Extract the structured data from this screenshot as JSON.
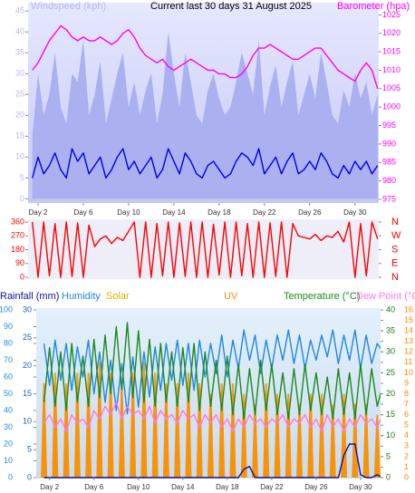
{
  "chart_data": [
    {
      "type": "line",
      "title": "Current last 30 days 31 August 2025",
      "ylabel": "Windspeed (kph)",
      "y2label": "Barometer (hpa)",
      "x": [
        1.5,
        2,
        2.5,
        3,
        3.5,
        4,
        4.5,
        5,
        5.5,
        6,
        6.5,
        7,
        7.5,
        8,
        8.5,
        9,
        9.5,
        10,
        10.5,
        11,
        11.5,
        12,
        12.5,
        13,
        13.5,
        14,
        14.5,
        15,
        15.5,
        16,
        16.5,
        17,
        17.5,
        18,
        18.5,
        19,
        19.5,
        20,
        20.5,
        21,
        21.5,
        22,
        22.5,
        23,
        23.5,
        24,
        24.5,
        25,
        25.5,
        26,
        26.5,
        27,
        27.5,
        28,
        28.5,
        29,
        29.5,
        30,
        30.5,
        31,
        31.5,
        32
      ],
      "xlim": [
        1.12,
        32.1
      ],
      "xticks": [
        {
          "value": 2,
          "label": "Day 2"
        },
        {
          "value": 6,
          "label": "Day 6"
        },
        {
          "value": 10,
          "label": "Day 10"
        },
        {
          "value": 14,
          "label": "Day 14"
        },
        {
          "value": 18,
          "label": "Day 18"
        },
        {
          "value": 22,
          "label": "Day 22"
        },
        {
          "value": 26,
          "label": "Day 26"
        },
        {
          "value": 30,
          "label": "Day 30"
        }
      ],
      "ylim": [
        -1,
        47
      ],
      "yticks": [
        0,
        5,
        10,
        15,
        20,
        25,
        30,
        35,
        40,
        45
      ],
      "y2lim": [
        974,
        1028.3
      ],
      "y2ticks": [
        975,
        980,
        985,
        990,
        995,
        1000,
        1005,
        1010,
        1015,
        1020,
        1025
      ],
      "grid": false,
      "series": [
        {
          "type": "area",
          "color": "#aab0f0",
          "values": [
            15,
            30,
            20,
            25,
            35,
            22,
            18,
            30,
            28,
            38,
            20,
            25,
            33,
            18,
            24,
            30,
            35,
            22,
            28,
            20,
            26,
            30,
            18,
            25,
            40,
            30,
            22,
            35,
            28,
            20,
            18,
            26,
            30,
            24,
            20,
            22,
            28,
            35,
            30,
            25,
            38,
            20,
            27,
            32,
            22,
            28,
            33,
            20,
            25,
            30,
            24,
            35,
            28,
            20,
            18,
            26,
            22,
            30,
            24,
            28,
            20,
            25
          ]
        },
        {
          "type": "line",
          "color": "#0000ee",
          "values": [
            5,
            10,
            6,
            8,
            11,
            7,
            5,
            12,
            9,
            11,
            6,
            8,
            10,
            5,
            7,
            10,
            12,
            7,
            9,
            6,
            8,
            10,
            5,
            7,
            12,
            9,
            6,
            11,
            9,
            6,
            5,
            8,
            9,
            7,
            5,
            6,
            9,
            11,
            10,
            8,
            12,
            6,
            8,
            10,
            6,
            9,
            11,
            6,
            7,
            9,
            7,
            11,
            9,
            6,
            5,
            8,
            6,
            9,
            7,
            9,
            6,
            8
          ]
        },
        {
          "type": "line",
          "axis": "y2",
          "color": "#ff00ff",
          "values": [
            1010,
            1012,
            1015,
            1018,
            1020,
            1022,
            1021,
            1019,
            1018,
            1019,
            1018,
            1018,
            1019,
            1018,
            1017,
            1018,
            1020,
            1021,
            1019,
            1016,
            1014,
            1013,
            1012,
            1013,
            1011,
            1010,
            1011,
            1012,
            1013,
            1012,
            1011,
            1010,
            1010,
            1009,
            1009,
            1008,
            1008,
            1009,
            1011,
            1014,
            1016,
            1016,
            1017,
            1016,
            1015,
            1014,
            1013,
            1013,
            1014,
            1015,
            1016,
            1016,
            1014,
            1012,
            1010,
            1009,
            1008,
            1007,
            1010,
            1012,
            1010,
            1005
          ]
        }
      ]
    },
    {
      "type": "line",
      "x": [
        1.5,
        2,
        2.5,
        3,
        3.5,
        4,
        4.5,
        5,
        5.5,
        6,
        6.5,
        7,
        7.5,
        8,
        8.5,
        9,
        9.5,
        10,
        10.5,
        11,
        11.5,
        12,
        12.5,
        13,
        13.5,
        14,
        14.5,
        15,
        15.5,
        16,
        16.5,
        17,
        17.5,
        18,
        18.5,
        19,
        19.5,
        20,
        20.5,
        21,
        21.5,
        22,
        22.5,
        23,
        23.5,
        24,
        24.5,
        25,
        25.5,
        26,
        26.5,
        27,
        27.5,
        28,
        28.5,
        29,
        29.5,
        30,
        30.5,
        31,
        31.5,
        32
      ],
      "xlim": [
        1.12,
        32.1
      ],
      "ylim": [
        -12,
        378
      ],
      "yticks": [
        0,
        90,
        180,
        270,
        360
      ],
      "y2lim": [
        -12,
        378
      ],
      "y2ticks": [
        {
          "value": 360,
          "label": "N"
        },
        {
          "value": 270,
          "label": "W"
        },
        {
          "value": 180,
          "label": "S"
        },
        {
          "value": 90,
          "label": "E"
        },
        {
          "value": 0,
          "label": "N"
        }
      ],
      "grid": false,
      "series": [
        {
          "type": "line",
          "color": "#ff0000",
          "values": [
            360,
            0,
            360,
            10,
            350,
            0,
            360,
            5,
            355,
            0,
            340,
            200,
            250,
            270,
            220,
            260,
            240,
            300,
            360,
            0,
            360,
            0,
            350,
            10,
            360,
            0,
            355,
            5,
            360,
            0,
            360,
            0,
            345,
            15,
            360,
            0,
            360,
            10,
            350,
            0,
            360,
            0,
            355,
            5,
            360,
            0,
            350,
            270,
            260,
            250,
            280,
            240,
            270,
            260,
            300,
            230,
            360,
            0,
            350,
            10,
            360,
            250
          ]
        }
      ]
    },
    {
      "type": "line",
      "x": [
        1.5,
        2,
        2.5,
        3,
        3.5,
        4,
        4.5,
        5,
        5.5,
        6,
        6.5,
        7,
        7.5,
        8,
        8.5,
        9,
        9.5,
        10,
        10.5,
        11,
        11.5,
        12,
        12.5,
        13,
        13.5,
        14,
        14.5,
        15,
        15.5,
        16,
        16.5,
        17,
        17.5,
        18,
        18.5,
        19,
        19.5,
        20,
        20.5,
        21,
        21.5,
        22,
        22.5,
        23,
        23.5,
        24,
        24.5,
        25,
        25.5,
        26,
        26.5,
        27,
        27.5,
        28,
        28.5,
        29,
        29.5,
        30,
        30.5,
        31,
        31.5,
        32
      ],
      "xlim": [
        0.8,
        31.8
      ],
      "xticks": [
        {
          "value": 2,
          "label": "Day 2"
        },
        {
          "value": 6,
          "label": "Day 6"
        },
        {
          "value": 10,
          "label": "Day 10"
        },
        {
          "value": 14,
          "label": "Day 14"
        },
        {
          "value": 18,
          "label": "Day 18"
        },
        {
          "value": 22,
          "label": "Day 22"
        },
        {
          "value": 26,
          "label": "Day 26"
        },
        {
          "value": 30,
          "label": "Day 30"
        }
      ],
      "ylim": [
        0,
        100
      ],
      "yticks": [
        0,
        10,
        20,
        30,
        40,
        50,
        60,
        70,
        80,
        90,
        100
      ],
      "y2lim": [
        0,
        30
      ],
      "y2ticks": [
        0,
        5,
        10,
        15,
        20,
        25,
        30
      ],
      "y3lim": [
        0,
        40
      ],
      "y3ticks": [
        0,
        5,
        10,
        15,
        20,
        25,
        30,
        35,
        40
      ],
      "y4lim": [
        0,
        16
      ],
      "y4ticks": [
        0,
        1,
        2,
        3,
        4,
        5,
        6,
        7,
        8,
        9,
        10,
        11,
        12,
        13,
        14,
        15,
        16
      ],
      "grid": false,
      "series": [
        {
          "name": "Solar",
          "type": "bar",
          "color": "#e0b000",
          "x": [
            1.5,
            2.5,
            3.5,
            4.5,
            5.5,
            6.5,
            7.5,
            8.5,
            9.5,
            10.5,
            11.5,
            12.5,
            13.5,
            14.5,
            15.5,
            16.5,
            17.5,
            18.5,
            19.5,
            20.5,
            21.5,
            22.5,
            23.5,
            24.5,
            25.5,
            26.5,
            27.5,
            28.5,
            29.5,
            30.5,
            31.5
          ],
          "values": [
            50,
            55,
            52,
            54,
            56,
            55,
            57,
            53,
            56,
            58,
            54,
            52,
            50,
            55,
            53,
            48,
            52,
            50,
            45,
            38,
            50,
            47,
            46,
            44,
            48,
            45,
            40,
            46,
            44,
            42,
            35
          ]
        },
        {
          "name": "UV",
          "type": "bar",
          "axis": "y4",
          "color": "#ff8c00",
          "x": [
            1.5,
            2.5,
            3.5,
            4.5,
            5.5,
            6.5,
            7.5,
            8.5,
            9.5,
            10.5,
            11.5,
            12.5,
            13.5,
            14.5,
            15.5,
            16.5,
            17.5,
            18.5,
            19.5,
            20.5,
            21.5,
            22.5,
            23.5,
            24.5,
            25.5,
            26.5,
            27.5,
            28.5,
            29.5,
            30.5,
            31.5
          ],
          "values": [
            9,
            10,
            9,
            10,
            10,
            11,
            10,
            9,
            10,
            11,
            10,
            9,
            9,
            10,
            9,
            8,
            9,
            9,
            8,
            7,
            9,
            8,
            8,
            7,
            8,
            8,
            7,
            8,
            7,
            7,
            6
          ]
        },
        {
          "name": "Humidity",
          "type": "line",
          "color": "#1e88e5",
          "values": [
            80,
            55,
            82,
            58,
            80,
            52,
            78,
            60,
            82,
            50,
            75,
            45,
            70,
            40,
            68,
            38,
            72,
            42,
            75,
            48,
            78,
            52,
            80,
            58,
            82,
            55,
            80,
            52,
            82,
            60,
            80,
            62,
            85,
            60,
            82,
            65,
            88,
            70,
            85,
            62,
            82,
            65,
            85,
            70,
            88,
            68,
            85,
            65,
            82,
            70,
            85,
            72,
            88,
            68,
            85,
            70,
            88,
            65,
            85,
            68,
            80,
            75
          ]
        },
        {
          "name": "Temperature (°C)",
          "type": "line",
          "axis": "y3",
          "color": "#1a8a1a",
          "values": [
            18,
            31,
            17,
            30,
            16,
            32,
            18,
            29,
            17,
            33,
            19,
            34,
            20,
            36,
            21,
            37,
            19,
            35,
            18,
            33,
            17,
            32,
            18,
            30,
            17,
            31,
            18,
            32,
            16,
            30,
            17,
            28,
            16,
            29,
            15,
            27,
            14,
            26,
            15,
            28,
            16,
            27,
            15,
            25,
            14,
            26,
            15,
            27,
            16,
            25,
            15,
            24,
            14,
            26,
            15,
            25,
            14,
            27,
            15,
            26,
            17,
            22
          ]
        },
        {
          "name": "Dew Point (°C",
          "type": "line",
          "axis": "y3",
          "color": "#ff77ee",
          "values": [
            13,
            15,
            12,
            14,
            11,
            15,
            13,
            14,
            12,
            16,
            14,
            17,
            15,
            18,
            14,
            17,
            15,
            16,
            14,
            17,
            13,
            16,
            14,
            15,
            13,
            16,
            14,
            15,
            12,
            15,
            13,
            15,
            12,
            14,
            11,
            14,
            12,
            15,
            13,
            14,
            12,
            14,
            13,
            15,
            12,
            14,
            13,
            15,
            12,
            14,
            11,
            15,
            12,
            14,
            11,
            14,
            12,
            15,
            13,
            14,
            12,
            15
          ]
        },
        {
          "name": "Rainfall (mm)",
          "type": "line",
          "axis": "y2",
          "color": "#1010a0",
          "values": [
            0,
            0,
            0,
            0,
            0,
            0,
            0,
            0,
            0,
            0,
            0,
            0,
            0,
            0,
            0,
            0,
            0,
            0,
            0,
            0,
            0,
            0,
            0,
            0,
            0,
            0,
            0,
            0,
            0,
            0,
            0,
            0,
            0,
            0,
            0,
            0,
            1.5,
            2,
            0,
            0,
            0,
            0,
            0,
            0,
            0,
            0,
            0,
            0,
            0,
            0,
            0,
            0,
            0,
            0,
            4,
            6,
            6,
            0.5,
            0,
            0,
            0.5,
            0
          ]
        }
      ]
    }
  ]
}
